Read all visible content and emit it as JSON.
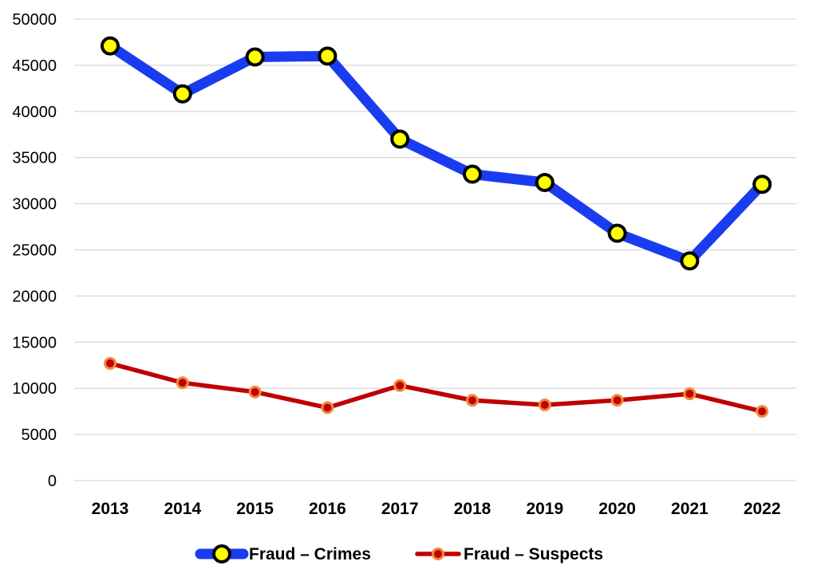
{
  "chart_data": {
    "type": "line",
    "x": [
      "2013",
      "2014",
      "2015",
      "2016",
      "2017",
      "2018",
      "2019",
      "2020",
      "2021",
      "2022"
    ],
    "ylim": [
      0,
      50000
    ],
    "yticks": [
      0,
      5000,
      10000,
      15000,
      20000,
      25000,
      30000,
      35000,
      40000,
      45000,
      50000
    ],
    "grid": true,
    "legend_position": "bottom",
    "series": [
      {
        "name": "Fraud – Crimes",
        "values": [
          47100,
          41900,
          45900,
          46000,
          37000,
          33200,
          32300,
          26800,
          23800,
          32100
        ],
        "color": "#1a3cf0",
        "marker_fill": "#ffff00",
        "marker_stroke": "#000000"
      },
      {
        "name": "Fraud – Suspects",
        "values": [
          12700,
          10600,
          9600,
          7900,
          10300,
          8700,
          8200,
          8700,
          9400,
          7500
        ],
        "color": "#c00000",
        "marker_fill": "#c00000",
        "marker_stroke": "#f08a3c"
      }
    ]
  }
}
